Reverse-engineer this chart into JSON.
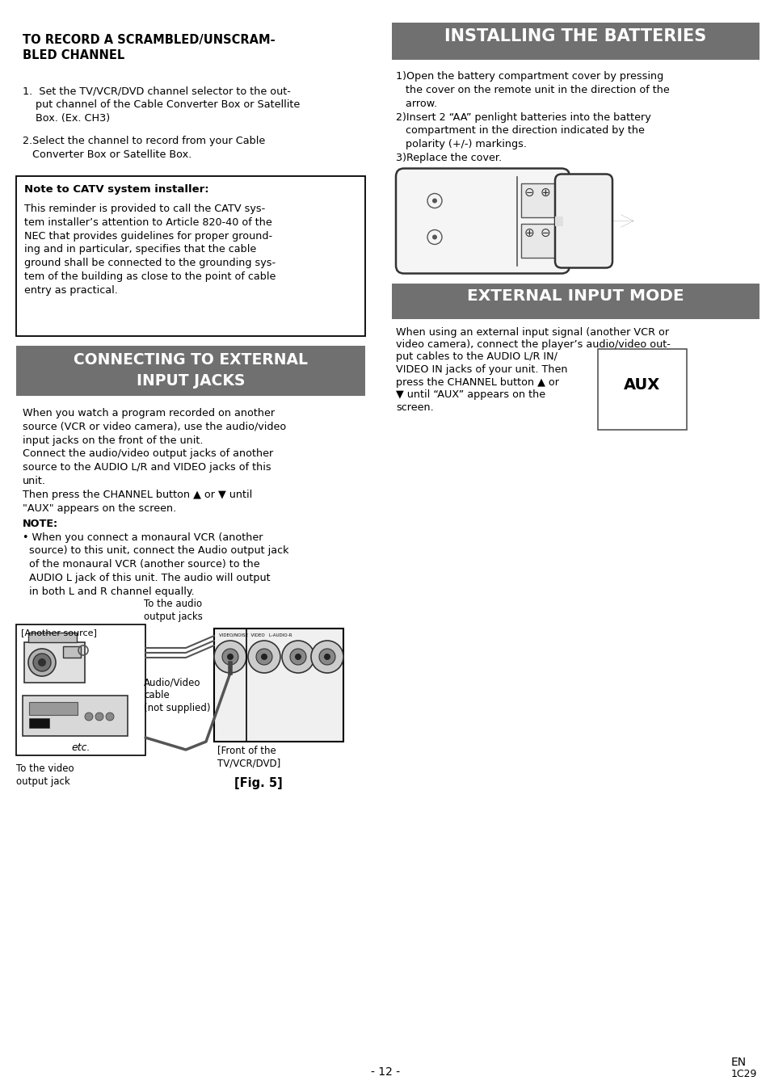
{
  "bg_color": "#ffffff",
  "header_bg": "#707070",
  "header_text_color": "#ffffff",
  "body_text_color": "#000000",
  "left_title": "TO RECORD A SCRAMBLED/UNSCRAM-\nBLED CHANNEL",
  "item1": "1.  Set the TV/VCR/DVD channel selector to the out-\n    put channel of the Cable Converter Box or Satellite\n    Box. (Ex. CH3)",
  "item2": "2.Select the channel to record from your Cable\n   Converter Box or Satellite Box.",
  "note_title": "Note to CATV system installer:",
  "note_body": "This reminder is provided to call the CATV sys-\ntem installer’s attention to Article 820-40 of the\nNEC that provides guidelines for proper ground-\ning and in particular, specifies that the cable\nground shall be connected to the grounding sys-\ntem of the building as close to the point of cable\nentry as practical.",
  "hdr2_text1": "CONNECTING TO EXTERNAL",
  "hdr2_text2": "INPUT JACKS",
  "sec2_p1": "When you watch a program recorded on another\nsource (VCR or video camera), use the audio/video\ninput jacks on the front of the unit.",
  "sec2_p2": "Connect the audio/video output jacks of another\nsource to the AUDIO L/R and VIDEO jacks of this\nunit.",
  "sec2_p3": "Then press the CHANNEL button ▲ or ▼ until\n\"AUX\" appears on the screen.",
  "note2_label": "NOTE:",
  "sec2_bullet": "• When you connect a monaural VCR (another\n  source) to this unit, connect the Audio output jack\n  of the monaural VCR (another source) to the\n  AUDIO L jack of this unit. The audio will output\n  in both L and R channel equally.",
  "hdr1_right": "INSTALLING THE BATTERIES",
  "bat1": "1)Open the battery compartment cover by pressing\n   the cover on the remote unit in the direction of the\n   arrow.",
  "bat2": "2)Insert 2 “AA” penlight batteries into the battery\n   compartment in the direction indicated by the\n   polarity (+/-) markings.",
  "bat3": "3)Replace the cover.",
  "hdr2_right": "EXTERNAL INPUT MODE",
  "ext_p1_line1": "When using an external input signal (another VCR or",
  "ext_p1_line2": "video camera), connect the player’s audio/video out-",
  "ext_p1_line3": "put cables to the AUDIO L/R IN/",
  "ext_p1_line4": "VIDEO IN jacks of your unit. Then",
  "ext_p1_line5": "press the CHANNEL button ▲ or",
  "ext_p1_line6": "▼ until “AUX” appears on the",
  "ext_p1_line7": "screen.",
  "aux_label": "AUX",
  "fig_label": "[Fig. 5]",
  "footer_center": "- 12 -",
  "footer_en": "EN",
  "footer_code": "1C29",
  "diagram_label_audio": "To the audio\noutput jacks",
  "diagram_label_src": "[Another source]",
  "diagram_label_cable": "Audio/Video\ncable\n(not supplied)",
  "diagram_label_front": "[Front of the\nTV/VCR/DVD]",
  "diagram_label_video": "To the video\noutput jack",
  "diagram_label_etc": "etc."
}
